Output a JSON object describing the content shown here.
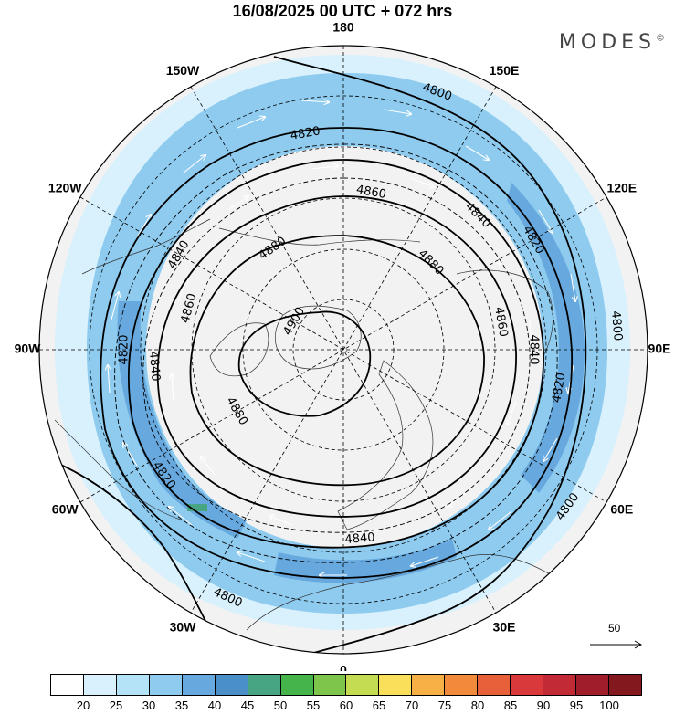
{
  "title": "16/08/2025  00 UTC  + 072 hrs",
  "brand": "MODES",
  "brand_mark": "©",
  "longitude_labels": [
    {
      "text": "180",
      "angle": 0
    },
    {
      "text": "150E",
      "angle": 30
    },
    {
      "text": "120E",
      "angle": 60
    },
    {
      "text": "90E",
      "angle": 90
    },
    {
      "text": "60E",
      "angle": 120
    },
    {
      "text": "30E",
      "angle": 150
    },
    {
      "text": "0",
      "angle": 180
    },
    {
      "text": "30W",
      "angle": 210
    },
    {
      "text": "60W",
      "angle": 240
    },
    {
      "text": "90W",
      "angle": 270
    },
    {
      "text": "120W",
      "angle": 300
    },
    {
      "text": "150W",
      "angle": 330
    }
  ],
  "contours": [
    {
      "value": "4900"
    },
    {
      "value": "4880"
    },
    {
      "value": "4860"
    },
    {
      "value": "4840"
    },
    {
      "value": "4820"
    },
    {
      "value": "4800"
    }
  ],
  "contour_labels": [
    {
      "text": "4800",
      "angle": 20
    },
    {
      "text": "4820",
      "angle": 350
    },
    {
      "text": "4840",
      "angle": 300
    },
    {
      "text": "4860",
      "angle": 10
    },
    {
      "text": "4880",
      "angle": 325
    },
    {
      "text": "4900",
      "angle": 300
    },
    {
      "text": "4840",
      "angle": 45
    },
    {
      "text": "4820",
      "angle": 60
    },
    {
      "text": "4880",
      "angle": 45
    },
    {
      "text": "4860",
      "angle": 80
    },
    {
      "text": "4820",
      "angle": 270
    },
    {
      "text": "4860",
      "angle": 285
    },
    {
      "text": "4840",
      "angle": 265
    },
    {
      "text": "4880",
      "angle": 240
    },
    {
      "text": "4820",
      "angle": 235
    },
    {
      "text": "4840",
      "angle": 175
    },
    {
      "text": "4800",
      "angle": 205
    },
    {
      "text": "4800",
      "angle": 125
    },
    {
      "text": "4820",
      "angle": 100
    },
    {
      "text": "4840",
      "angle": 90
    },
    {
      "text": "4800",
      "angle": 85
    }
  ],
  "colorbar": {
    "colors": [
      "#ffffff",
      "#d8f1fd",
      "#b4e2f7",
      "#8ecbef",
      "#67a9de",
      "#4a8fc8",
      "#47a584",
      "#45b44a",
      "#7ec64b",
      "#c3dc52",
      "#fadf5a",
      "#f7b046",
      "#f28a3b",
      "#e8603a",
      "#d9393a",
      "#c22a36",
      "#a01e2c",
      "#84181f"
    ],
    "labels": [
      "20",
      "25",
      "30",
      "35",
      "40",
      "45",
      "50",
      "55",
      "60",
      "65",
      "70",
      "75",
      "80",
      "85",
      "90",
      "95",
      "100"
    ]
  },
  "reference_vector": {
    "label": "50"
  }
}
